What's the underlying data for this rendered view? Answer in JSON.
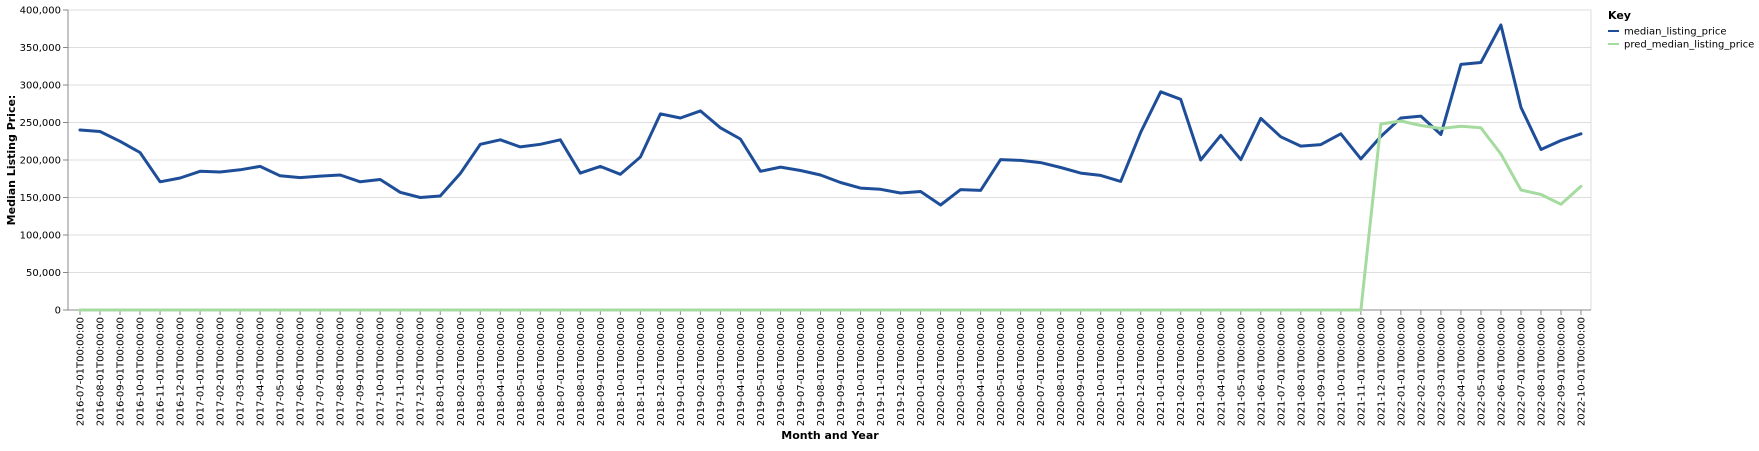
{
  "chart_data": {
    "type": "line",
    "title": "",
    "xlabel": "Month and Year",
    "ylabel": "Median Listing Price:",
    "ylim": [
      0,
      400000
    ],
    "yticks": [
      "0",
      "50,000",
      "100,000",
      "150,000",
      "200,000",
      "250,000",
      "300,000",
      "350,000",
      "400,000"
    ],
    "grid": true,
    "legend": {
      "title": "Key",
      "position": "top-right"
    },
    "x": [
      "2016-07-01T00:00:00",
      "2016-08-01T00:00:00",
      "2016-09-01T00:00:00",
      "2016-10-01T00:00:00",
      "2016-11-01T00:00:00",
      "2016-12-01T00:00:00",
      "2017-01-01T00:00:00",
      "2017-02-01T00:00:00",
      "2017-03-01T00:00:00",
      "2017-04-01T00:00:00",
      "2017-05-01T00:00:00",
      "2017-06-01T00:00:00",
      "2017-07-01T00:00:00",
      "2017-08-01T00:00:00",
      "2017-09-01T00:00:00",
      "2017-10-01T00:00:00",
      "2017-11-01T00:00:00",
      "2017-12-01T00:00:00",
      "2018-01-01T00:00:00",
      "2018-02-01T00:00:00",
      "2018-03-01T00:00:00",
      "2018-04-01T00:00:00",
      "2018-05-01T00:00:00",
      "2018-06-01T00:00:00",
      "2018-07-01T00:00:00",
      "2018-08-01T00:00:00",
      "2018-09-01T00:00:00",
      "2018-10-01T00:00:00",
      "2018-11-01T00:00:00",
      "2018-12-01T00:00:00",
      "2019-01-01T00:00:00",
      "2019-02-01T00:00:00",
      "2019-03-01T00:00:00",
      "2019-04-01T00:00:00",
      "2019-05-01T00:00:00",
      "2019-06-01T00:00:00",
      "2019-07-01T00:00:00",
      "2019-08-01T00:00:00",
      "2019-09-01T00:00:00",
      "2019-10-01T00:00:00",
      "2019-11-01T00:00:00",
      "2019-12-01T00:00:00",
      "2020-01-01T00:00:00",
      "2020-02-01T00:00:00",
      "2020-03-01T00:00:00",
      "2020-04-01T00:00:00",
      "2020-05-01T00:00:00",
      "2020-06-01T00:00:00",
      "2020-07-01T00:00:00",
      "2020-08-01T00:00:00",
      "2020-09-01T00:00:00",
      "2020-10-01T00:00:00",
      "2020-11-01T00:00:00",
      "2020-12-01T00:00:00",
      "2021-01-01T00:00:00",
      "2021-02-01T00:00:00",
      "2021-03-01T00:00:00",
      "2021-04-01T00:00:00",
      "2021-05-01T00:00:00",
      "2021-06-01T00:00:00",
      "2021-07-01T00:00:00",
      "2021-08-01T00:00:00",
      "2021-09-01T00:00:00",
      "2021-10-01T00:00:00",
      "2021-11-01T00:00:00",
      "2021-12-01T00:00:00",
      "2022-01-01T00:00:00",
      "2022-02-01T00:00:00",
      "2022-03-01T00:00:00",
      "2022-04-01T00:00:00",
      "2022-05-01T00:00:00",
      "2022-06-01T00:00:00",
      "2022-07-01T00:00:00",
      "2022-08-01T00:00:00",
      "2022-09-01T00:00:00",
      "2022-10-01T00:00:00"
    ],
    "series": [
      {
        "name": "median_listing_price",
        "color": "#1f4e99",
        "values": [
          240000,
          238000,
          225000,
          210000,
          171000,
          176000,
          185000,
          184000,
          187000,
          191500,
          179000,
          176500,
          178500,
          180000,
          171000,
          174000,
          157000,
          150000,
          152000,
          182000,
          221000,
          227000,
          217500,
          221000,
          227000,
          182500,
          191500,
          181000,
          204000,
          261500,
          256000,
          265500,
          243000,
          228000,
          185000,
          190500,
          186000,
          180000,
          170000,
          162500,
          161000,
          156000,
          158000,
          140000,
          160500,
          159500,
          200500,
          199500,
          196500,
          190000,
          182500,
          179500,
          171500,
          237000,
          291000,
          281000,
          200000,
          233000,
          200500,
          255500,
          231000,
          218500,
          220500,
          235000,
          201500,
          231500,
          256000,
          258500,
          234000,
          327500,
          330000,
          380000,
          270000,
          214000,
          226000,
          235000
        ]
      },
      {
        "name": "pred_median_listing_price",
        "color": "#a6dba0",
        "values": [
          0,
          0,
          0,
          0,
          0,
          0,
          0,
          0,
          0,
          0,
          0,
          0,
          0,
          0,
          0,
          0,
          0,
          0,
          0,
          0,
          0,
          0,
          0,
          0,
          0,
          0,
          0,
          0,
          0,
          0,
          0,
          0,
          0,
          0,
          0,
          0,
          0,
          0,
          0,
          0,
          0,
          0,
          0,
          0,
          0,
          0,
          0,
          0,
          0,
          0,
          0,
          0,
          0,
          0,
          0,
          0,
          0,
          0,
          0,
          0,
          0,
          0,
          0,
          0,
          0,
          248000,
          252000,
          246000,
          242000,
          245000,
          243000,
          208000,
          160000,
          154000,
          141000,
          165000
        ]
      }
    ]
  }
}
